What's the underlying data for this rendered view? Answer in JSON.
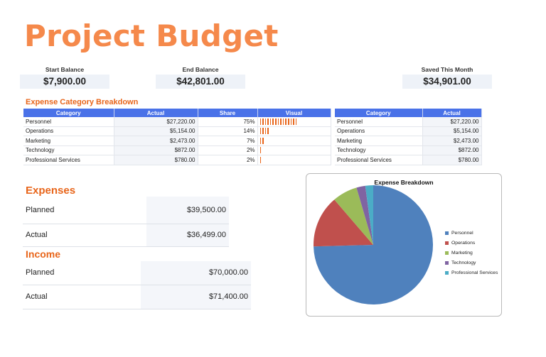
{
  "title": "Project Budget",
  "summary": [
    {
      "label": "Start Balance",
      "value": "$7,900.00"
    },
    {
      "label": "End Balance",
      "value": "$42,801.00"
    },
    {
      "label": "Saved This Month",
      "value": "$34,901.00"
    }
  ],
  "breakdown": {
    "title": "Expense Category Breakdown",
    "headers": [
      "Category",
      "Actual",
      "Share",
      "Visual"
    ],
    "rows": [
      {
        "category": "Personnel",
        "actual": "$27,220.00",
        "share": "75%",
        "bars": 15
      },
      {
        "category": "Operations",
        "actual": "$5,154.00",
        "share": "14%",
        "bars": 4
      },
      {
        "category": "Marketing",
        "actual": "$2,473.00",
        "share": "7%",
        "bars": 2
      },
      {
        "category": "Technology",
        "actual": "$872.00",
        "share": "2%",
        "bars": 1
      },
      {
        "category": "Professional Services",
        "actual": "$780.00",
        "share": "2%",
        "bars": 1
      }
    ]
  },
  "right_table": {
    "headers": [
      "Category",
      "Actual"
    ],
    "rows": [
      {
        "category": "Personnel",
        "actual": "$27,220.00"
      },
      {
        "category": "Operations",
        "actual": "$5,154.00"
      },
      {
        "category": "Marketing",
        "actual": "$2,473.00"
      },
      {
        "category": "Technology",
        "actual": "$872.00"
      },
      {
        "category": "Professional Services",
        "actual": "$780.00"
      }
    ]
  },
  "expenses": {
    "title": "Expenses",
    "rows": [
      {
        "label": "Planned",
        "value": "$39,500.00"
      },
      {
        "label": "Actual",
        "value": "$36,499.00"
      }
    ]
  },
  "income": {
    "title": "Income",
    "rows": [
      {
        "label": "Planned",
        "value": "$70,000.00"
      },
      {
        "label": "Actual",
        "value": "$71,400.00"
      }
    ]
  },
  "chart_data": {
    "type": "pie",
    "title": "Expense Breakdown",
    "categories": [
      "Personnel",
      "Operations",
      "Marketing",
      "Technology",
      "Professional Services"
    ],
    "values": [
      27220,
      5154,
      2473,
      872,
      780
    ],
    "colors": [
      "#4f81bd",
      "#c0504d",
      "#9bbb59",
      "#8064a2",
      "#4bacc6"
    ],
    "legend": "right"
  }
}
